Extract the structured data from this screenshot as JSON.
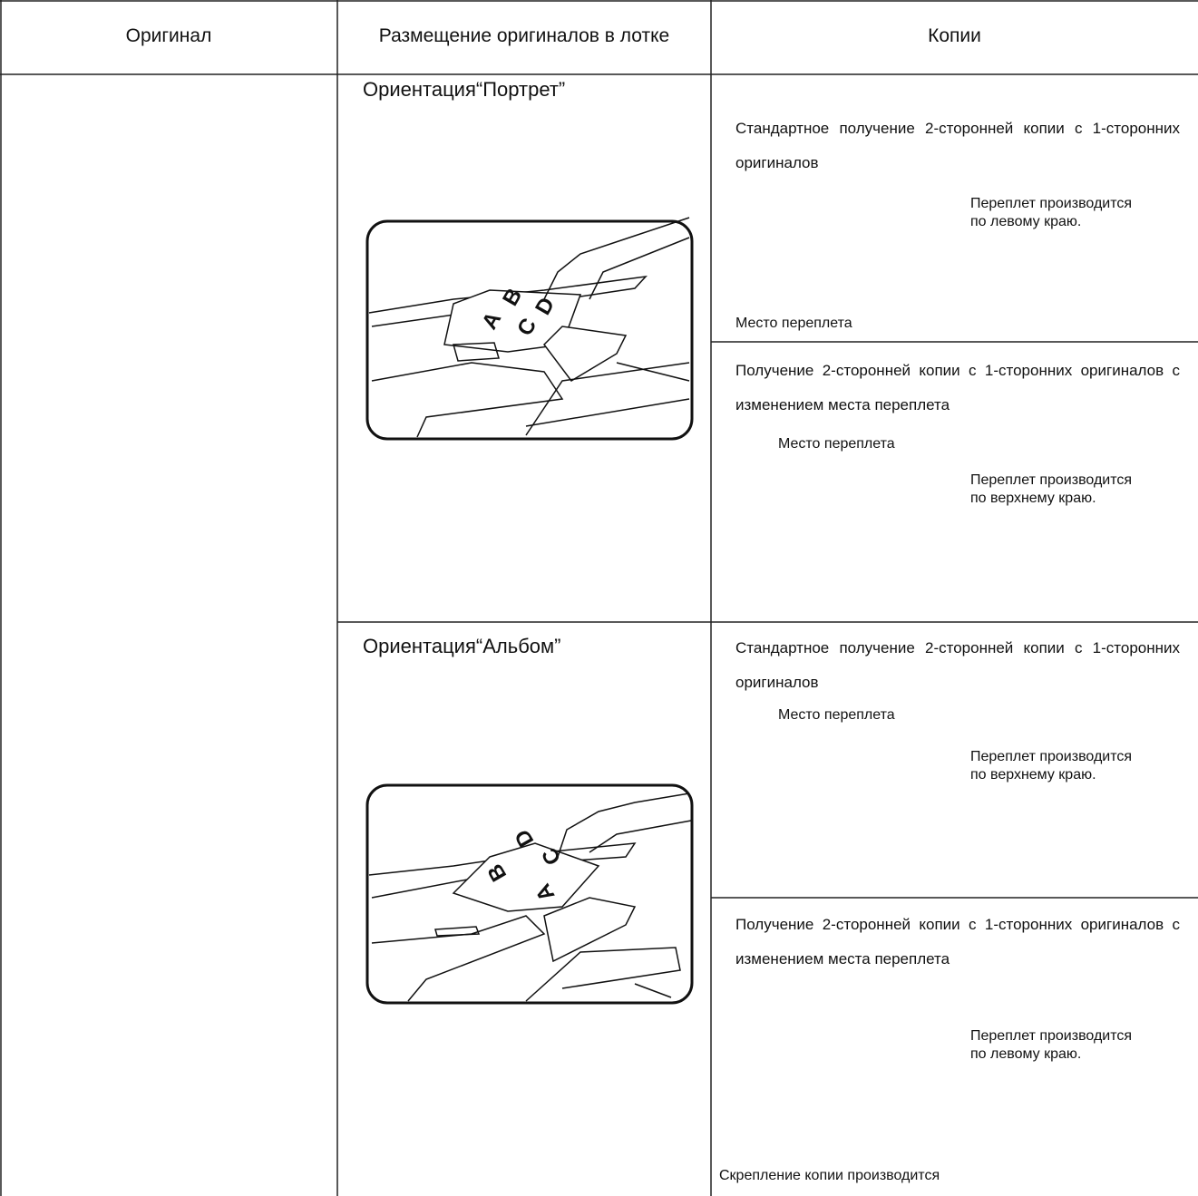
{
  "table": {
    "headers": [
      "Оригинал",
      "Размещение оригиналов в лотке",
      "Копии"
    ],
    "rows": [
      {
        "placement": {
          "label": "Ориентация“Портрет”",
          "letters": [
            "A",
            "B",
            "C",
            "D"
          ]
        },
        "copies": [
          {
            "text": "Стандартное получение 2-сторонней копии с 1-сторонних оригиналов",
            "note": "Переплет производится по левому краю.",
            "binding": "Место переплета"
          },
          {
            "text": "Получение 2-сторонней копии с 1-сторонних оригиналов с изменением места переплета",
            "binding": "Место переплета",
            "note": "Переплет производится по верхнему краю."
          }
        ]
      },
      {
        "placement": {
          "label": "Ориентация“Альбом”",
          "letters": [
            "A",
            "B",
            "C",
            "D"
          ]
        },
        "copies": [
          {
            "text": "Стандартное получение 2-сторонней копии с 1-сторонних оригиналов",
            "binding": "Место переплета",
            "note": "Переплет производится по верхнему краю."
          },
          {
            "text": "Получение 2-сторонней копии с 1-сторонних оригиналов с изменением места переплета",
            "note": "Переплет производится по левому краю.",
            "footer": "Скрепление копии производится"
          }
        ]
      }
    ]
  }
}
